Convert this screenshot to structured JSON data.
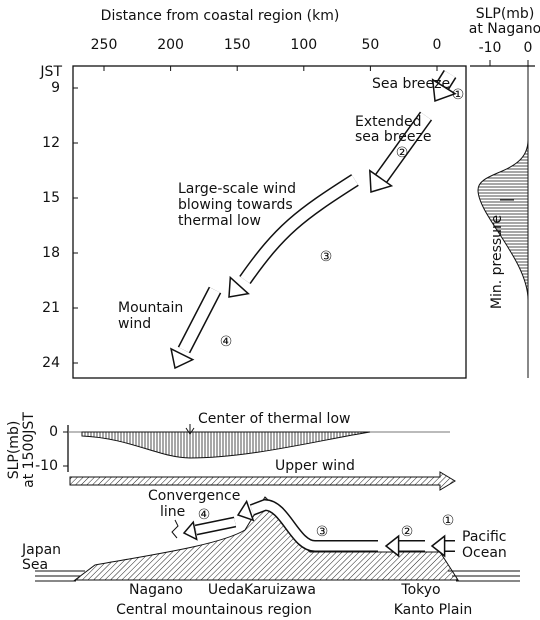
{
  "main_panel": {
    "x_axis_label": "Distance from coastal region (km)",
    "x_ticks": [
      250,
      200,
      150,
      100,
      50,
      0
    ],
    "y_axis_label": "JST",
    "y_ticks": [
      9,
      12,
      15,
      18,
      21,
      24
    ],
    "annotations": [
      {
        "lines": [
          "Sea breeze"
        ],
        "marker": "①"
      },
      {
        "lines": [
          "Extended",
          "sea breeze"
        ],
        "marker": "②"
      },
      {
        "lines": [
          "Large-scale wind",
          "blowing towards",
          "thermal low"
        ],
        "marker": "③"
      },
      {
        "lines": [
          "Mountain",
          "wind"
        ],
        "marker": "④"
      }
    ]
  },
  "pressure_panel": {
    "label": "SLP(mb)",
    "sublabel": "at Nagano",
    "ticks": [
      -10,
      0
    ],
    "annotation": "Min. pressure"
  },
  "thermal_low_panel": {
    "label": "SLP(mb)",
    "sublabel": "at 1500JST",
    "ticks": [
      0,
      -10
    ],
    "annotation": "Center of thermal low",
    "upper_wind": "Upper wind"
  },
  "cross_section": {
    "convergence_label": [
      "Convergence",
      "line"
    ],
    "markers": [
      "④",
      "③",
      "②",
      "①"
    ],
    "left_sea": [
      "Japan",
      "Sea"
    ],
    "right_sea": [
      "Pacific",
      "Ocean"
    ],
    "places": [
      "Nagano",
      "Ueda",
      "Karuizawa",
      "Tokyo"
    ],
    "regions": [
      "Central mountainous region",
      "Kanto Plain"
    ]
  }
}
